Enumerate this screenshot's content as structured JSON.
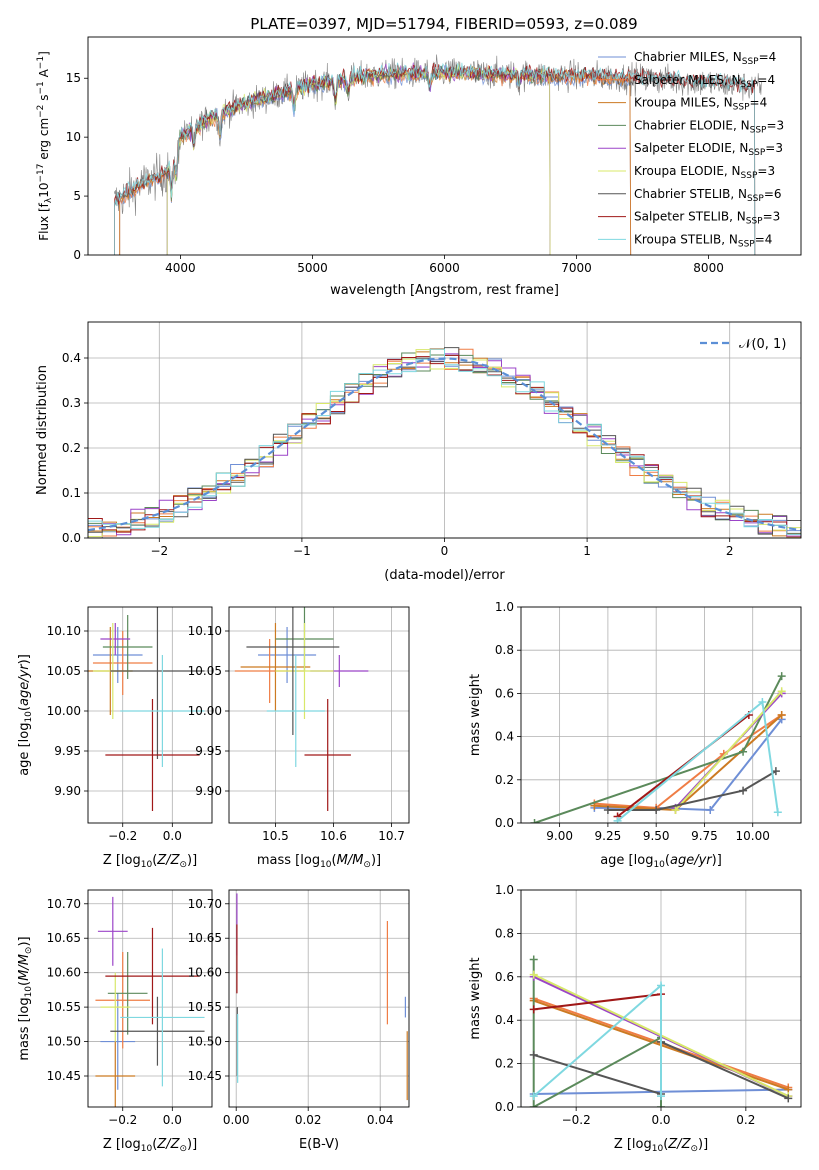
{
  "figure_title": "PLATE=0397, MJD=51794, FIBERID=0593, z=0.089",
  "colors": {
    "Chabrier MILES": "#6f8fd6",
    "Salpeter MILES": "#ef7d45",
    "Kroupa MILES": "#cc7a22",
    "Chabrier ELODIE": "#5b8a5b",
    "Salpeter ELODIE": "#9b44c8",
    "Kroupa ELODIE": "#d8e86a",
    "Chabrier STELIB": "#555555",
    "Salpeter STELIB": "#a01818",
    "Kroupa STELIB": "#7fd8e0",
    "data": "#808080",
    "normal": "#5b8fd6"
  },
  "chart_data": [
    {
      "id": "spectrum",
      "type": "line",
      "title": "PLATE=0397, MJD=51794, FIBERID=0593, z=0.089",
      "xlabel": "wavelength [Angstrom, rest frame]",
      "ylabel": "Flux [f_λ 10^-17 erg cm^-2 s^-1 A^-1]",
      "xlim": [
        3300,
        8700
      ],
      "ylim": [
        0,
        18.5
      ],
      "xticks": [
        4000,
        5000,
        6000,
        7000,
        8000
      ],
      "yticks": [
        0,
        5,
        10,
        15
      ],
      "legend_position": "top-right",
      "legend": [
        "Chabrier MILES, N_SSP=4",
        "Salpeter MILES, N_SSP=4",
        "Kroupa MILES, N_SSP=4",
        "Chabrier ELODIE, N_SSP=3",
        "Salpeter ELODIE, N_SSP=3",
        "Kroupa ELODIE, N_SSP=3",
        "Chabrier STELIB, N_SSP=6",
        "Salpeter STELIB, N_SSP=3",
        "Kroupa STELIB, N_SSP=4"
      ],
      "continuum": {
        "x": [
          3500,
          3700,
          3900,
          4000,
          4200,
          4400,
          4700,
          5000,
          5500,
          6000,
          6500,
          7000,
          7500,
          8000,
          8400
        ],
        "y": [
          4.5,
          6.0,
          7.0,
          10.0,
          11.5,
          12.5,
          13.5,
          14.5,
          15.3,
          15.5,
          15.3,
          15.2,
          15.0,
          14.6,
          14.2
        ]
      },
      "model_ranges": {
        "MILES": [
          3540,
          7410
        ],
        "ELODIE": [
          3900,
          6800
        ],
        "STELIB": [
          3500,
          8350
        ]
      }
    },
    {
      "id": "residuals",
      "type": "line",
      "xlabel": "(data-model)/error",
      "ylabel": "Normed distribution",
      "xlim": [
        -2.5,
        2.5
      ],
      "ylim": [
        0,
        0.48
      ],
      "xticks": [
        -2,
        -1,
        0,
        1,
        2
      ],
      "yticks": [
        0.0,
        0.1,
        0.2,
        0.3,
        0.4
      ],
      "legend": [
        "𝒩(0, 1)"
      ],
      "legend_position": "top-right",
      "bin_width": 0.1
    },
    {
      "id": "age_vs_Z",
      "type": "scatter",
      "xlabel": "Z [log10(Z/Z⊙)]",
      "ylabel": "age  [log10(age/yr)]",
      "xlim": [
        -0.34,
        0.16
      ],
      "ylim": [
        9.86,
        10.13
      ],
      "xticks": [
        -0.2,
        0.0
      ],
      "yticks": [
        9.9,
        9.95,
        10.0,
        10.05,
        10.1
      ],
      "series": [
        {
          "model": "Chabrier MILES",
          "x": -0.22,
          "y": 10.07,
          "xerr": 0.1,
          "yerr": 0.035
        },
        {
          "model": "Salpeter MILES",
          "x": -0.2,
          "y": 10.06,
          "xerr": 0.12,
          "yerr": 0.04
        },
        {
          "model": "Kroupa MILES",
          "x": -0.25,
          "y": 10.05,
          "xerr": 0.09,
          "yerr": 0.055
        },
        {
          "model": "Chabrier ELODIE",
          "x": -0.18,
          "y": 10.08,
          "xerr": 0.1,
          "yerr": 0.04
        },
        {
          "model": "Salpeter ELODIE",
          "x": -0.23,
          "y": 10.09,
          "xerr": 0.06,
          "yerr": 0.02
        },
        {
          "model": "Kroupa ELODIE",
          "x": -0.24,
          "y": 10.05,
          "xerr": 0.08,
          "yerr": 0.06
        },
        {
          "model": "Chabrier STELIB",
          "x": -0.06,
          "y": 10.05,
          "xerr": 0.19,
          "yerr": 0.11
        },
        {
          "model": "Salpeter STELIB",
          "x": -0.08,
          "y": 9.945,
          "xerr": 0.19,
          "yerr": 0.07
        },
        {
          "model": "Kroupa STELIB",
          "x": -0.04,
          "y": 10.0,
          "xerr": 0.17,
          "yerr": 0.07
        }
      ]
    },
    {
      "id": "age_vs_mass",
      "type": "scatter",
      "xlabel": "mass [log10(M/M⊙)]",
      "ylabel": "",
      "xlim": [
        10.42,
        10.73
      ],
      "ylim": [
        9.86,
        10.13
      ],
      "xticks": [
        10.5,
        10.6,
        10.7
      ],
      "yticks": [
        9.9,
        9.95,
        10.0,
        10.05,
        10.1
      ],
      "series": [
        {
          "model": "Chabrier MILES",
          "x": 10.52,
          "y": 10.07,
          "xerr": 0.05,
          "yerr": 0.035
        },
        {
          "model": "Salpeter MILES",
          "x": 10.49,
          "y": 10.05,
          "xerr": 0.06,
          "yerr": 0.04
        },
        {
          "model": "Kroupa MILES",
          "x": 10.5,
          "y": 10.055,
          "xerr": 0.06,
          "yerr": 0.055
        },
        {
          "model": "Chabrier ELODIE",
          "x": 10.55,
          "y": 10.09,
          "xerr": 0.05,
          "yerr": 0.04
        },
        {
          "model": "Salpeter ELODIE",
          "x": 10.61,
          "y": 10.05,
          "xerr": 0.05,
          "yerr": 0.02
        },
        {
          "model": "Kroupa ELODIE",
          "x": 10.55,
          "y": 10.05,
          "xerr": 0.05,
          "yerr": 0.06
        },
        {
          "model": "Chabrier STELIB",
          "x": 10.53,
          "y": 10.08,
          "xerr": 0.08,
          "yerr": 0.11
        },
        {
          "model": "Salpeter STELIB",
          "x": 10.59,
          "y": 9.945,
          "xerr": 0.04,
          "yerr": 0.07
        },
        {
          "model": "Kroupa STELIB",
          "x": 10.535,
          "y": 10.0,
          "xerr": 0.05,
          "yerr": 0.07
        }
      ]
    },
    {
      "id": "weight_vs_age",
      "type": "line",
      "xlabel": "age  [log10(age/yr)]",
      "ylabel": "mass weight",
      "xlim": [
        8.8,
        10.25
      ],
      "ylim": [
        0,
        1
      ],
      "xticks": [
        9.0,
        9.25,
        9.5,
        9.75,
        10.0
      ],
      "yticks": [
        0.0,
        0.2,
        0.4,
        0.6,
        0.8,
        1.0
      ],
      "series": [
        {
          "model": "Chabrier MILES",
          "x": [
            9.18,
            9.5,
            9.78,
            10.15
          ],
          "y": [
            0.07,
            0.07,
            0.06,
            0.48
          ]
        },
        {
          "model": "Salpeter MILES",
          "x": [
            9.18,
            9.5,
            9.85,
            10.15
          ],
          "y": [
            0.09,
            0.07,
            0.32,
            0.5
          ]
        },
        {
          "model": "Kroupa MILES",
          "x": [
            9.18,
            9.6,
            10.15
          ],
          "y": [
            0.08,
            0.06,
            0.5
          ]
        },
        {
          "model": "Chabrier ELODIE",
          "x": [
            8.87,
            9.95,
            10.15
          ],
          "y": [
            0.0,
            0.33,
            0.68
          ]
        },
        {
          "model": "Salpeter ELODIE",
          "x": [
            9.6,
            10.15
          ],
          "y": [
            0.07,
            0.6
          ]
        },
        {
          "model": "Kroupa ELODIE",
          "x": [
            9.6,
            10.15
          ],
          "y": [
            0.06,
            0.61
          ]
        },
        {
          "model": "Chabrier STELIB",
          "x": [
            9.25,
            9.5,
            9.95,
            10.12
          ],
          "y": [
            0.06,
            0.06,
            0.15,
            0.24
          ]
        },
        {
          "model": "Salpeter STELIB",
          "x": [
            9.3,
            9.98
          ],
          "y": [
            0.03,
            0.5
          ]
        },
        {
          "model": "Kroupa STELIB",
          "x": [
            9.3,
            10.05,
            10.13
          ],
          "y": [
            0.01,
            0.56,
            0.05
          ]
        }
      ]
    },
    {
      "id": "mass_vs_Z",
      "type": "scatter",
      "xlabel": "Z [log10(Z/Z⊙)]",
      "ylabel": "mass [log10(M/M⊙)]",
      "xlim": [
        -0.34,
        0.16
      ],
      "ylim": [
        10.405,
        10.72
      ],
      "xticks": [
        -0.2,
        0.0
      ],
      "yticks": [
        10.45,
        10.5,
        10.55,
        10.6,
        10.65,
        10.7
      ],
      "series": [
        {
          "model": "Chabrier MILES",
          "x": -0.22,
          "y": 10.5,
          "xerr": 0.07,
          "yerr": 0.07
        },
        {
          "model": "Salpeter MILES",
          "x": -0.2,
          "y": 10.56,
          "xerr": 0.11,
          "yerr": 0.07
        },
        {
          "model": "Kroupa MILES",
          "x": -0.23,
          "y": 10.45,
          "xerr": 0.08,
          "yerr": 0.05
        },
        {
          "model": "Chabrier ELODIE",
          "x": -0.18,
          "y": 10.57,
          "xerr": 0.08,
          "yerr": 0.06
        },
        {
          "model": "Salpeter ELODIE",
          "x": -0.24,
          "y": 10.66,
          "xerr": 0.06,
          "yerr": 0.05
        },
        {
          "model": "Kroupa ELODIE",
          "x": -0.23,
          "y": 10.55,
          "xerr": 0.06,
          "yerr": 0.05
        },
        {
          "model": "Chabrier STELIB",
          "x": -0.06,
          "y": 10.515,
          "xerr": 0.19,
          "yerr": 0.05
        },
        {
          "model": "Salpeter STELIB",
          "x": -0.08,
          "y": 10.595,
          "xerr": 0.19,
          "yerr": 0.07
        },
        {
          "model": "Kroupa STELIB",
          "x": -0.04,
          "y": 10.535,
          "xerr": 0.17,
          "yerr": 0.1
        }
      ]
    },
    {
      "id": "mass_vs_EBV",
      "type": "scatter",
      "xlabel": "E(B-V)",
      "ylabel": "",
      "xlim": [
        -0.002,
        0.048
      ],
      "ylim": [
        10.405,
        10.72
      ],
      "xticks": [
        0.0,
        0.02,
        0.04
      ],
      "yticks": [
        10.45,
        10.5,
        10.55,
        10.6,
        10.65,
        10.7
      ],
      "series": [
        {
          "model": "Salpeter ELODIE",
          "x": 0.0002,
          "y": 10.67,
          "yerr": 0.045
        },
        {
          "model": "Salpeter STELIB",
          "x": 0.0002,
          "y": 10.62,
          "yerr": 0.05
        },
        {
          "model": "Chabrier STELIB",
          "x": 0.0003,
          "y": 10.5,
          "yerr": 0.05
        },
        {
          "model": "Kroupa STELIB",
          "x": 0.0004,
          "y": 10.49,
          "yerr": 0.05
        },
        {
          "model": "Salpeter MILES",
          "x": 0.042,
          "y": 10.6,
          "yerr": 0.075
        },
        {
          "model": "Chabrier MILES",
          "x": 0.047,
          "y": 10.55,
          "yerr": 0.015
        },
        {
          "model": "Kroupa MILES",
          "x": 0.0475,
          "y": 10.465,
          "yerr": 0.05
        }
      ]
    },
    {
      "id": "weight_vs_Z",
      "type": "line",
      "xlabel": "Z [log10(Z/Z⊙)]",
      "ylabel": "mass weight",
      "xlim": [
        -0.33,
        0.33
      ],
      "ylim": [
        0,
        1
      ],
      "xticks": [
        -0.2,
        0.0,
        0.2
      ],
      "yticks": [
        0.0,
        0.2,
        0.4,
        0.6,
        0.8,
        1.0
      ],
      "series": [
        {
          "model": "Chabrier MILES",
          "x": [
            -0.3,
            0.0,
            0.3
          ],
          "y": [
            0.06,
            0.07,
            0.08
          ]
        },
        {
          "model": "Salpeter MILES",
          "x": [
            -0.3,
            0.3
          ],
          "y": [
            0.5,
            0.09
          ]
        },
        {
          "model": "Kroupa MILES",
          "x": [
            -0.3,
            0.3
          ],
          "y": [
            0.49,
            0.08
          ]
        },
        {
          "model": "Chabrier ELODIE",
          "x": [
            -0.3,
            -0.3,
            0.0,
            0.0
          ],
          "y": [
            0.68,
            0.0,
            0.32,
            0.0
          ]
        },
        {
          "model": "Salpeter ELODIE",
          "x": [
            -0.3,
            0.3
          ],
          "y": [
            0.6,
            0.05
          ]
        },
        {
          "model": "Kroupa ELODIE",
          "x": [
            -0.3,
            0.3
          ],
          "y": [
            0.61,
            0.05
          ]
        },
        {
          "model": "Chabrier STELIB",
          "x": [
            -0.3,
            0.0,
            0.0,
            0.3
          ],
          "y": [
            0.24,
            0.06,
            0.3,
            0.04
          ]
        },
        {
          "model": "Salpeter STELIB",
          "x": [
            -0.3,
            0.0
          ],
          "y": [
            0.45,
            0.52
          ]
        },
        {
          "model": "Kroupa STELIB",
          "x": [
            -0.3,
            0.0,
            0.0
          ],
          "y": [
            0.05,
            0.56,
            0.05
          ]
        }
      ]
    }
  ]
}
